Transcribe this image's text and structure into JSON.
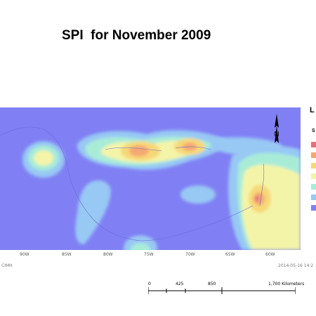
{
  "title": "SPI  for November 2009",
  "longitude_ticks": [
    "90W",
    "85W",
    "80W",
    "75W",
    "70W",
    "65W",
    "60W"
  ],
  "credit_left": "CIMH",
  "credit_right": "2014-05-16 14:2",
  "legend": {
    "heading": "L",
    "subheading": "S",
    "colors": [
      "#e8707a",
      "#f5a872",
      "#f7d878",
      "#f4f4a8",
      "#a8ecd8",
      "#98c8f4",
      "#8080f4"
    ]
  },
  "scale": {
    "labels": [
      "0",
      "425",
      "850",
      "1,700 Kilometers"
    ]
  },
  "north_arrow": "N"
}
